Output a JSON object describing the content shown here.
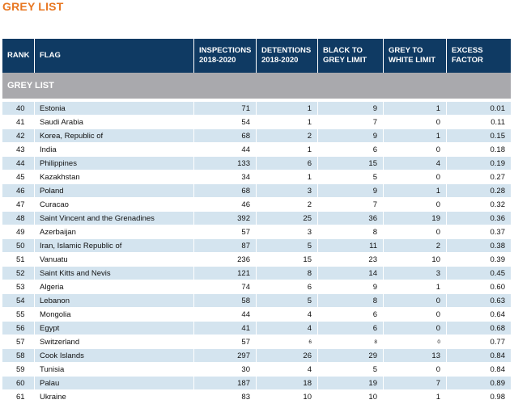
{
  "page": {
    "title": "GREY LIST"
  },
  "table": {
    "headers": {
      "rank": "RANK",
      "flag": "FLAG",
      "inspections": [
        "INSPECTIONS",
        "2018-2020"
      ],
      "detentions": [
        "DETENTIONS",
        "2018-2020"
      ],
      "black_to_grey": [
        "BLACK TO",
        "GREY LIMIT"
      ],
      "grey_to_white": [
        "GREY TO",
        "WHITE LIMIT"
      ],
      "excess_factor": [
        "EXCESS",
        "FACTOR"
      ]
    },
    "section_label": "GREY LIST",
    "rows": [
      {
        "rank": "40",
        "flag": "Estonia",
        "inspections": "71",
        "detentions": "1",
        "black_to_grey": "9",
        "grey_to_white": "1",
        "excess_factor": "0.01"
      },
      {
        "rank": "41",
        "flag": "Saudi Arabia",
        "inspections": "54",
        "detentions": "1",
        "black_to_grey": "7",
        "grey_to_white": "0",
        "excess_factor": "0.11"
      },
      {
        "rank": "42",
        "flag": "Korea, Republic of",
        "inspections": "68",
        "detentions": "2",
        "black_to_grey": "9",
        "grey_to_white": "1",
        "excess_factor": "0.15"
      },
      {
        "rank": "43",
        "flag": "India",
        "inspections": "44",
        "detentions": "1",
        "black_to_grey": "6",
        "grey_to_white": "0",
        "excess_factor": "0.18"
      },
      {
        "rank": "44",
        "flag": "Philippines",
        "inspections": "133",
        "detentions": "6",
        "black_to_grey": "15",
        "grey_to_white": "4",
        "excess_factor": "0.19"
      },
      {
        "rank": "45",
        "flag": "Kazakhstan",
        "inspections": "34",
        "detentions": "1",
        "black_to_grey": "5",
        "grey_to_white": "0",
        "excess_factor": "0.27"
      },
      {
        "rank": "46",
        "flag": "Poland",
        "inspections": "68",
        "detentions": "3",
        "black_to_grey": "9",
        "grey_to_white": "1",
        "excess_factor": "0.28"
      },
      {
        "rank": "47",
        "flag": "Curacao",
        "inspections": "46",
        "detentions": "2",
        "black_to_grey": "7",
        "grey_to_white": "0",
        "excess_factor": "0.32"
      },
      {
        "rank": "48",
        "flag": "Saint Vincent and the Grenadines",
        "inspections": "392",
        "detentions": "25",
        "black_to_grey": "36",
        "grey_to_white": "19",
        "excess_factor": "0.36"
      },
      {
        "rank": "49",
        "flag": "Azerbaijan",
        "inspections": "57",
        "detentions": "3",
        "black_to_grey": "8",
        "grey_to_white": "0",
        "excess_factor": "0.37"
      },
      {
        "rank": "50",
        "flag": "Iran, Islamic Republic of",
        "inspections": "87",
        "detentions": "5",
        "black_to_grey": "11",
        "grey_to_white": "2",
        "excess_factor": "0.38"
      },
      {
        "rank": "51",
        "flag": "Vanuatu",
        "inspections": "236",
        "detentions": "15",
        "black_to_grey": "23",
        "grey_to_white": "10",
        "excess_factor": "0.39"
      },
      {
        "rank": "52",
        "flag": "Saint Kitts and Nevis",
        "inspections": "121",
        "detentions": "8",
        "black_to_grey": "14",
        "grey_to_white": "3",
        "excess_factor": "0.45"
      },
      {
        "rank": "53",
        "flag": "Algeria",
        "inspections": "74",
        "detentions": "6",
        "black_to_grey": "9",
        "grey_to_white": "1",
        "excess_factor": "0.60"
      },
      {
        "rank": "54",
        "flag": "Lebanon",
        "inspections": "58",
        "detentions": "5",
        "black_to_grey": "8",
        "grey_to_white": "0",
        "excess_factor": "0.63"
      },
      {
        "rank": "55",
        "flag": "Mongolia",
        "inspections": "44",
        "detentions": "4",
        "black_to_grey": "6",
        "grey_to_white": "0",
        "excess_factor": "0.64"
      },
      {
        "rank": "56",
        "flag": "Egypt",
        "inspections": "41",
        "detentions": "4",
        "black_to_grey": "6",
        "grey_to_white": "0",
        "excess_factor": "0.68"
      },
      {
        "rank": "57",
        "flag": "Switzerland",
        "inspections": "57",
        "detentions": "6",
        "black_to_grey": "8",
        "grey_to_white": "0",
        "excess_factor": "0.77"
      },
      {
        "rank": "58",
        "flag": "Cook Islands",
        "inspections": "297",
        "detentions": "26",
        "black_to_grey": "29",
        "grey_to_white": "13",
        "excess_factor": "0.84"
      },
      {
        "rank": "59",
        "flag": "Tunisia",
        "inspections": "30",
        "detentions": "4",
        "black_to_grey": "5",
        "grey_to_white": "0",
        "excess_factor": "0.84"
      },
      {
        "rank": "60",
        "flag": "Palau",
        "inspections": "187",
        "detentions": "18",
        "black_to_grey": "19",
        "grey_to_white": "7",
        "excess_factor": "0.89"
      },
      {
        "rank": "61",
        "flag": "Ukraine",
        "inspections": "83",
        "detentions": "10",
        "black_to_grey": "10",
        "grey_to_white": "1",
        "excess_factor": "0.98"
      }
    ]
  }
}
